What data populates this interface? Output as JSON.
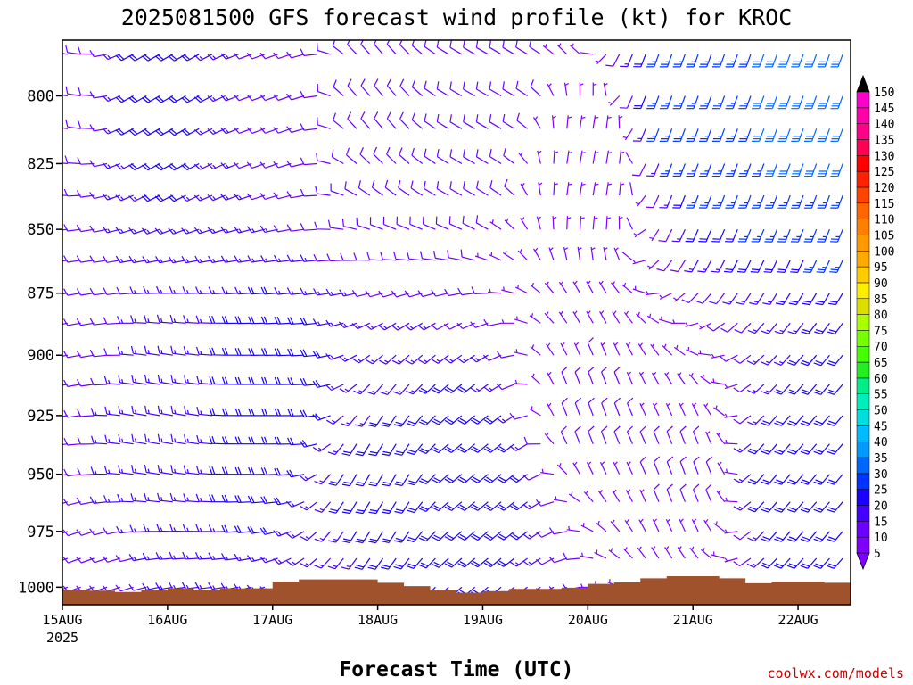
{
  "chart_data": {
    "type": "wind-barb-profile",
    "title": "2025081500 GFS forecast wind profile (kt) for KROC",
    "xlabel": "Forecast Time (UTC)",
    "ylabel": "",
    "credit": "coolwx.com/models",
    "x_start_date": "15AUG",
    "x_ticks": [
      {
        "label": "15AUG",
        "sublabel": "2025",
        "day": 0
      },
      {
        "label": "16AUG",
        "sublabel": "",
        "day": 1
      },
      {
        "label": "17AUG",
        "sublabel": "",
        "day": 2
      },
      {
        "label": "18AUG",
        "sublabel": "",
        "day": 3
      },
      {
        "label": "19AUG",
        "sublabel": "",
        "day": 4
      },
      {
        "label": "20AUG",
        "sublabel": "",
        "day": 5
      },
      {
        "label": "21AUG",
        "sublabel": "",
        "day": 6
      },
      {
        "label": "22AUG",
        "sublabel": "",
        "day": 7
      }
    ],
    "xlim_days": [
      0,
      7.5
    ],
    "y_scale": "log-pressure",
    "ylim_hpa": [
      1008,
      780
    ],
    "y_ticks": [
      800,
      825,
      850,
      875,
      900,
      925,
      950,
      975,
      1000
    ],
    "levels_hpa": [
      785,
      800,
      812,
      825,
      837,
      850,
      862,
      875,
      887,
      900,
      912,
      925,
      937,
      950,
      962,
      975,
      987,
      1000
    ],
    "colorbar": {
      "values": [
        5,
        10,
        15,
        20,
        25,
        30,
        35,
        40,
        45,
        50,
        55,
        60,
        65,
        70,
        75,
        80,
        85,
        90,
        95,
        100,
        105,
        110,
        115,
        120,
        125,
        130,
        135,
        140,
        145,
        150
      ],
      "colors": [
        "#8000ff",
        "#6a00ff",
        "#4400ff",
        "#1a00ff",
        "#0033ff",
        "#0066ff",
        "#0099ff",
        "#00bbff",
        "#00dddd",
        "#00eebb",
        "#00ee88",
        "#22ee22",
        "#44ff00",
        "#77ff00",
        "#aaff00",
        "#dddd00",
        "#ffee00",
        "#ffcc00",
        "#ffaa00",
        "#ff9900",
        "#ff8000",
        "#ff6600",
        "#ff4400",
        "#ff2200",
        "#ff0000",
        "#ff0055",
        "#ff0088",
        "#ff00aa",
        "#ff00cc",
        "#ff00dd"
      ]
    },
    "terrain_color": "#a0522d",
    "surface_pressure_hpa": [
      [
        0.0,
        1001.3
      ],
      [
        0.25,
        1001.6
      ],
      [
        0.5,
        1002.2
      ],
      [
        0.75,
        1001.5
      ],
      [
        1.0,
        1000.5
      ],
      [
        1.25,
        1001.2
      ],
      [
        1.5,
        1000.6
      ],
      [
        1.75,
        1000.5
      ],
      [
        2.0,
        997.5
      ],
      [
        2.25,
        996.5
      ],
      [
        2.5,
        996.5
      ],
      [
        2.75,
        996.5
      ],
      [
        3.0,
        998.0
      ],
      [
        3.25,
        999.5
      ],
      [
        3.5,
        1001.5
      ],
      [
        3.75,
        1002.5
      ],
      [
        4.0,
        1001.8
      ],
      [
        4.25,
        1000.8
      ],
      [
        4.5,
        1000.8
      ],
      [
        4.75,
        1000.2
      ],
      [
        5.0,
        998.5
      ],
      [
        5.25,
        997.8
      ],
      [
        5.5,
        996.0
      ],
      [
        5.75,
        995.0
      ],
      [
        6.0,
        995.0
      ],
      [
        6.25,
        996.0
      ],
      [
        6.5,
        998.2
      ],
      [
        6.75,
        997.5
      ],
      [
        7.0,
        997.5
      ],
      [
        7.25,
        998.0
      ],
      [
        7.5,
        998.5
      ]
    ],
    "wind_samples": [
      {
        "day": 0.0,
        "hpa": 1000,
        "dir": 250,
        "spd": 12
      },
      {
        "day": 0.0,
        "hpa": 900,
        "dir": 260,
        "spd": 10
      },
      {
        "day": 0.0,
        "hpa": 800,
        "dir": 280,
        "spd": 8
      },
      {
        "day": 1.0,
        "hpa": 925,
        "dir": 280,
        "spd": 15
      },
      {
        "day": 1.0,
        "hpa": 800,
        "dir": 240,
        "spd": 20
      },
      {
        "day": 2.0,
        "hpa": 925,
        "dir": 270,
        "spd": 22
      },
      {
        "day": 2.0,
        "hpa": 800,
        "dir": 250,
        "spd": 12
      },
      {
        "day": 3.0,
        "hpa": 950,
        "dir": 210,
        "spd": 18
      },
      {
        "day": 3.0,
        "hpa": 800,
        "dir": 320,
        "spd": 8
      },
      {
        "day": 4.0,
        "hpa": 950,
        "dir": 230,
        "spd": 22
      },
      {
        "day": 4.0,
        "hpa": 800,
        "dir": 300,
        "spd": 12
      },
      {
        "day": 5.0,
        "hpa": 925,
        "dir": 340,
        "spd": 8
      },
      {
        "day": 5.0,
        "hpa": 825,
        "dir": 10,
        "spd": 6
      },
      {
        "day": 6.0,
        "hpa": 950,
        "dir": 340,
        "spd": 8
      },
      {
        "day": 6.0,
        "hpa": 800,
        "dir": 200,
        "spd": 27
      },
      {
        "day": 7.0,
        "hpa": 950,
        "dir": 220,
        "spd": 22
      },
      {
        "day": 7.0,
        "hpa": 800,
        "dir": 200,
        "spd": 28
      }
    ]
  }
}
